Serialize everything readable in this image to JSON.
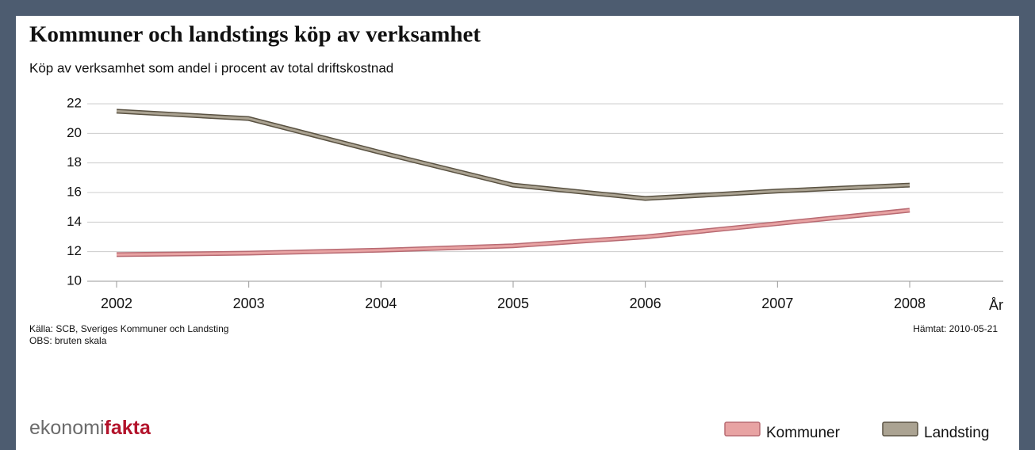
{
  "chart_data": {
    "type": "line",
    "title": "Kommuner och landstings köp av verksamhet",
    "subtitle": "Köp av verksamhet som andel i procent av total driftskostnad",
    "x_label": "År",
    "categories": [
      "2002",
      "2003",
      "2004",
      "2005",
      "2006",
      "2007",
      "2008"
    ],
    "series": [
      {
        "name": "Kommuner",
        "color": "#e8a3a3",
        "edge": "#b86a72",
        "values": [
          11.8,
          11.9,
          12.1,
          12.4,
          13.0,
          13.9,
          14.8
        ]
      },
      {
        "name": "Landsting",
        "color": "#aba392",
        "edge": "#5a5242",
        "values": [
          21.5,
          21.0,
          18.7,
          16.5,
          15.6,
          16.1,
          16.5
        ]
      }
    ],
    "ylim": [
      10,
      22
    ],
    "yticks": [
      10,
      12,
      14,
      16,
      18,
      20,
      22
    ],
    "grid": true,
    "source": "Källa: SCB, Sveriges Kommuner och Landsting",
    "note": "OBS: bruten skala",
    "retrieved": "Hämtat: 2010-05-21",
    "logo": [
      "ekonomi",
      "fakta"
    ],
    "legend": "bottom-right"
  }
}
